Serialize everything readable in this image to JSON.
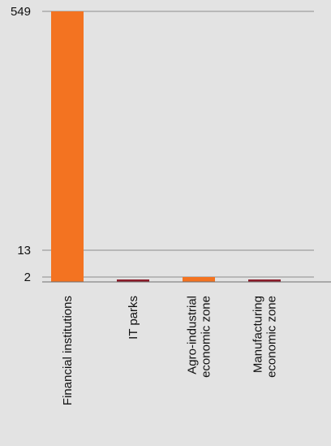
{
  "chart_data": {
    "type": "bar",
    "categories": [
      "Financial  institutions",
      "IT parks",
      "Agro-industrial economic zone",
      "Manufacturing economic zone"
    ],
    "category_lines": [
      [
        "Financial  institutions"
      ],
      [
        "IT parks"
      ],
      [
        "Agro-industrial",
        "economic zone"
      ],
      [
        "Manufacturing",
        "economic zone"
      ]
    ],
    "values": [
      549,
      1,
      2,
      1
    ],
    "bar_colors": [
      "#f37321",
      "#8b1d2b",
      "#f37321",
      "#8b1d2b"
    ],
    "y_ticks": [
      {
        "label": "549",
        "value": 549
      },
      {
        "label": "13",
        "value": 13
      },
      {
        "label": "2",
        "value": 2
      }
    ],
    "title": "",
    "xlabel": "",
    "ylabel": "",
    "grid": true,
    "legend": "none"
  },
  "colors": {
    "background": "#e3e3e3",
    "grid": "#8c8c8c",
    "axis": "#6f6f6f",
    "text": "#111111"
  }
}
